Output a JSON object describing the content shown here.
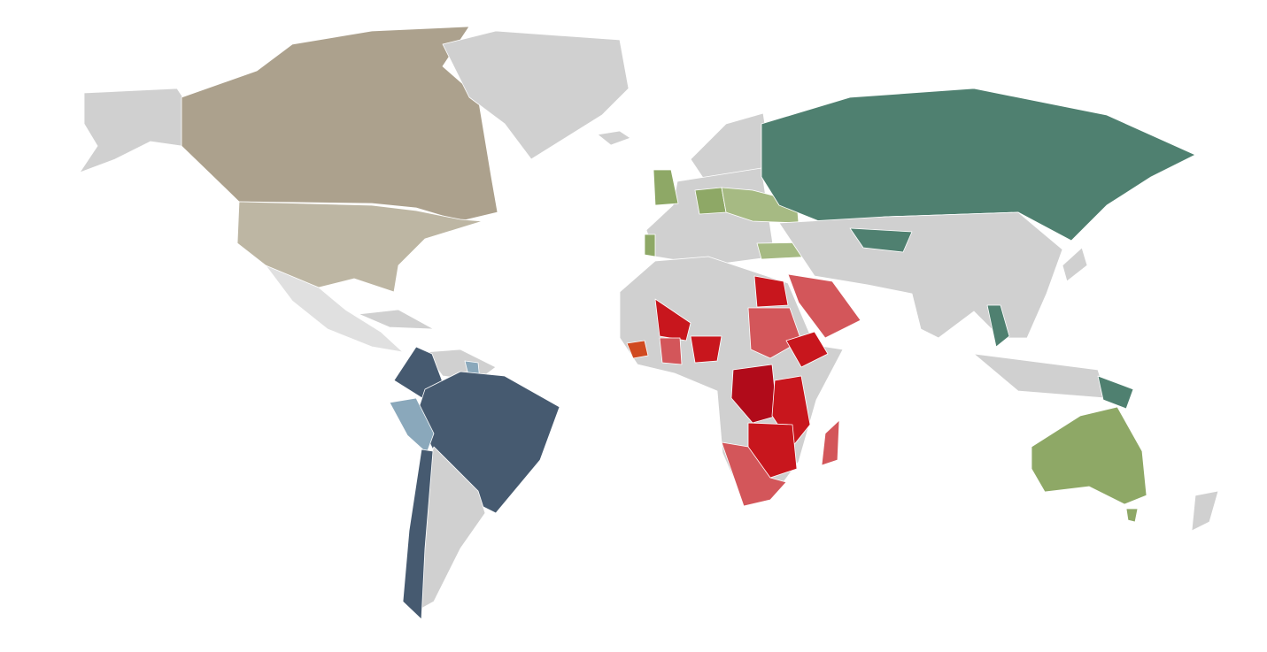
{
  "map": {
    "colors": [
      "#d0d0d0",
      "#aca18d",
      "#bdb6a3",
      "#e0e0e0",
      "#465a70",
      "#8aa8bb",
      "#8ea866",
      "#a6ba83",
      "#4f8070",
      "#c8161d",
      "#d3565a",
      "#b10b1a",
      "#d04a20"
    ]
  }
}
